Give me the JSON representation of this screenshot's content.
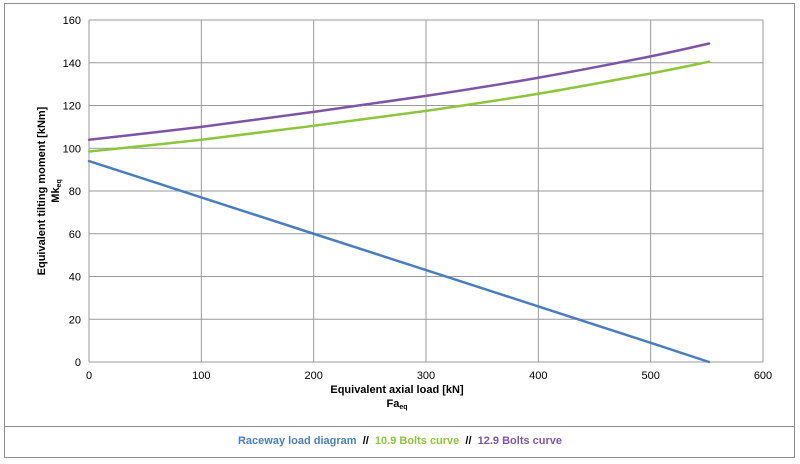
{
  "chart_data": {
    "type": "line",
    "xlabel": "Equivalent axial load [kN]",
    "xlabel_sub_main": "Fa",
    "xlabel_sub_script": "eq",
    "ylabel": "Equivalent tilting moment [kNm]",
    "ylabel_sub_main": "Mk",
    "ylabel_sub_script": "eq",
    "xlim": [
      0,
      600
    ],
    "ylim": [
      0,
      160
    ],
    "xticks": [
      0,
      100,
      200,
      300,
      400,
      500,
      600
    ],
    "yticks": [
      0,
      20,
      40,
      60,
      80,
      100,
      120,
      140,
      160
    ],
    "grid": true,
    "legend_position": "bottom",
    "legend_separator": "//",
    "series": [
      {
        "name": "Raceway load diagram",
        "color": "#4a7ebb",
        "x": [
          0,
          100,
          200,
          300,
          400,
          500,
          552
        ],
        "y": [
          94,
          77,
          60,
          43,
          26,
          9,
          0
        ]
      },
      {
        "name": "10.9 Bolts curve",
        "color": "#8cc63f",
        "x": [
          0,
          100,
          200,
          300,
          400,
          500,
          552
        ],
        "y": [
          98.5,
          104,
          110.5,
          117.5,
          125.5,
          135,
          140.5
        ]
      },
      {
        "name": "12.9 Bolts curve",
        "color": "#7e55a3",
        "x": [
          0,
          100,
          200,
          300,
          400,
          500,
          552
        ],
        "y": [
          104,
          110,
          117,
          124.5,
          133,
          143,
          149
        ]
      }
    ]
  }
}
